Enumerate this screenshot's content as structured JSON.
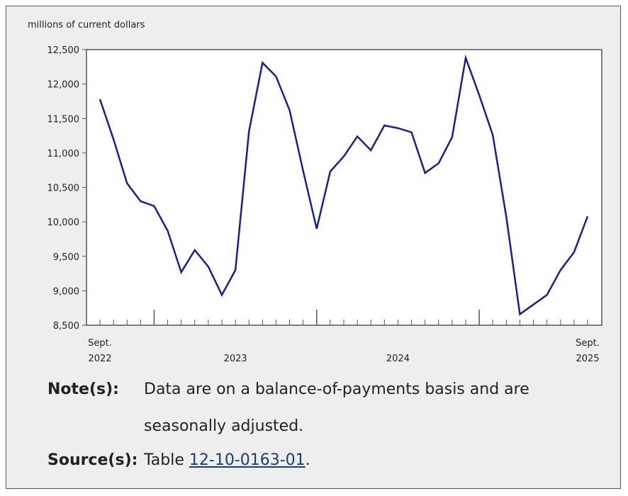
{
  "chart_data": {
    "type": "line",
    "y_axis_label": "millions of current dollars",
    "x_labels": [
      [
        "Sept.",
        "2022"
      ],
      [
        "2023"
      ],
      [
        "2024"
      ],
      [
        "Sept.",
        "2025"
      ]
    ],
    "series": [
      {
        "name": null,
        "color": "#1a1f8c",
        "values": [
          11780,
          11200,
          10560,
          10300,
          10230,
          9870,
          9270,
          9590,
          9350,
          8940,
          9300,
          11310,
          12310,
          12110,
          11620,
          10740,
          9900,
          10730,
          10950,
          11240,
          11040,
          11400,
          11360,
          11300,
          10710,
          10850,
          11230,
          12380,
          11840,
          11260,
          10070,
          8660,
          8800,
          8940,
          9300,
          9560,
          10080
        ]
      }
    ],
    "ylim": [
      8500,
      12500
    ],
    "yticks": [
      {
        "value": 8500,
        "label": "8,500"
      },
      {
        "value": 9000,
        "label": "9,000"
      },
      {
        "value": 9500,
        "label": "9,500"
      },
      {
        "value": 10000,
        "label": "10,000"
      },
      {
        "value": 10500,
        "label": "10,500"
      },
      {
        "value": 11000,
        "label": "11,000"
      },
      {
        "value": 11500,
        "label": "11,500"
      },
      {
        "value": 12000,
        "label": "12,000"
      },
      {
        "value": 12500,
        "label": "12,500"
      }
    ]
  },
  "notes": {
    "note_label": "Note(s):",
    "note_text": "Data are on a balance-of-payments basis and are seasonally adjusted.",
    "source_label": "Source(s):",
    "source_prefix": "Table",
    "source_link": "12-10-0163-01",
    "source_suffix": "."
  }
}
